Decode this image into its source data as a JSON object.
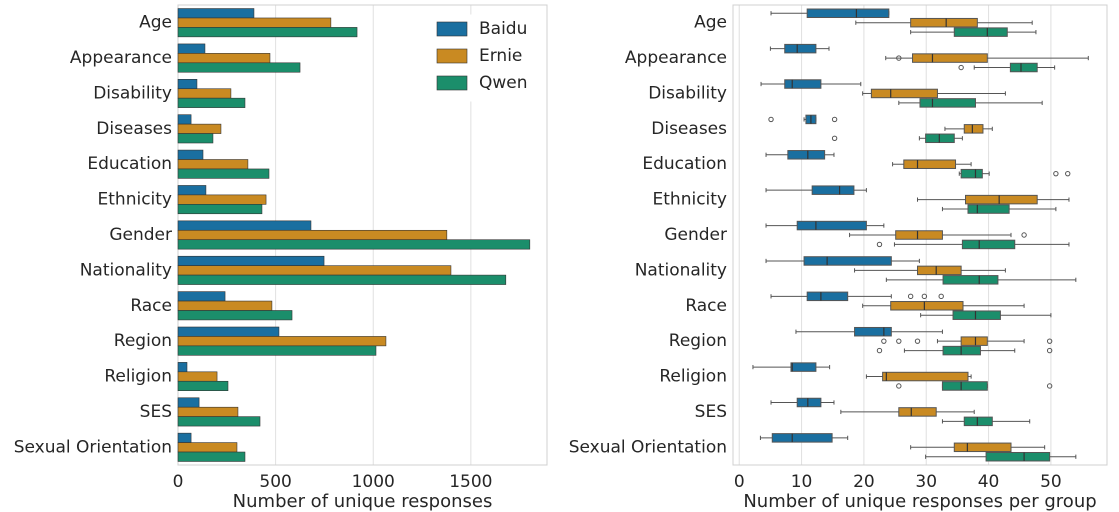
{
  "chart_data": [
    {
      "type": "bar",
      "orientation": "horizontal",
      "xlabel": "Number of unique responses",
      "categories": [
        "Age",
        "Appearance",
        "Disability",
        "Diseases",
        "Education",
        "Ethnicity",
        "Gender",
        "Nationality",
        "Race",
        "Region",
        "Religion",
        "SES",
        "Sexual Orientation"
      ],
      "series": [
        {
          "name": "Baidu",
          "color": "#1a6fa0",
          "values": [
            389,
            138,
            97,
            67,
            128,
            143,
            681,
            748,
            241,
            517,
            46,
            108,
            67
          ]
        },
        {
          "name": "Ernie",
          "color": "#c98a22",
          "values": [
            783,
            471,
            271,
            220,
            358,
            451,
            1377,
            1398,
            481,
            1065,
            200,
            307,
            302
          ]
        },
        {
          "name": "Qwen",
          "color": "#1b8e6b",
          "values": [
            917,
            625,
            343,
            179,
            466,
            430,
            1802,
            1679,
            584,
            1014,
            256,
            420,
            343
          ]
        }
      ],
      "xlim": [
        0,
        1890
      ],
      "xticks": [
        0,
        500,
        1000,
        1500
      ],
      "grid": true,
      "legend": "upper right"
    },
    {
      "type": "box",
      "orientation": "horizontal",
      "xlabel": "Number of unique responses per group",
      "categories": [
        "Age",
        "Appearance",
        "Disability",
        "Diseases",
        "Education",
        "Ethnicity",
        "Gender",
        "Nationality",
        "Race",
        "Region",
        "Religion",
        "SES",
        "Sexual Orientation"
      ],
      "series": [
        {
          "name": "Baidu",
          "color": "#1a6fa0",
          "values": [
            {
              "whislo": 5.1,
              "q1": 10.9,
              "med": 18.8,
              "q3": 24,
              "whishi": 24,
              "fliers": []
            },
            {
              "whislo": 5,
              "q1": 7.3,
              "med": 9.3,
              "q3": 12.3,
              "whishi": 14.4,
              "fliers": []
            },
            {
              "whislo": 3.5,
              "q1": 7.3,
              "med": 8.5,
              "q3": 13.1,
              "whishi": 19.5,
              "fliers": []
            },
            {
              "whislo": 10.4,
              "q1": 10.7,
              "med": 11.5,
              "q3": 12.3,
              "whishi": 12.3,
              "fliers": [
                5.1,
                15.3
              ]
            },
            {
              "whislo": 4.3,
              "q1": 7.8,
              "med": 11,
              "q3": 13.7,
              "whishi": 15.2,
              "fliers": []
            },
            {
              "whislo": 4.3,
              "q1": 11.7,
              "med": 16.1,
              "q3": 18.4,
              "whishi": 20.4,
              "fliers": []
            },
            {
              "whislo": 4.3,
              "q1": 9.3,
              "med": 12.3,
              "q3": 20.4,
              "whishi": 23.2,
              "fliers": []
            },
            {
              "whislo": 4.3,
              "q1": 10.4,
              "med": 14.1,
              "q3": 24.4,
              "whishi": 28.9,
              "fliers": []
            },
            {
              "whislo": 5.1,
              "q1": 10.9,
              "med": 13.1,
              "q3": 17.4,
              "whishi": 24.4,
              "fliers": [
                27.5,
                29.7,
                32.4
              ]
            },
            {
              "whislo": 9.1,
              "q1": 18.5,
              "med": 23.2,
              "q3": 24.4,
              "whishi": 32.6,
              "fliers": []
            },
            {
              "whislo": 2.2,
              "q1": 8.3,
              "med": 8.5,
              "q3": 12.3,
              "whishi": 14.5,
              "fliers": []
            },
            {
              "whislo": 5.1,
              "q1": 9.3,
              "med": 11,
              "q3": 13.1,
              "whishi": 15.2,
              "fliers": []
            },
            {
              "whislo": 3.4,
              "q1": 5.3,
              "med": 8.5,
              "q3": 14.9,
              "whishi": 17.4,
              "fliers": []
            }
          ]
        },
        {
          "name": "Ernie",
          "color": "#c98a22",
          "values": [
            {
              "whislo": 18.7,
              "q1": 27.5,
              "med": 33.2,
              "q3": 38.2,
              "whishi": 47,
              "fliers": []
            },
            {
              "whislo": 23.5,
              "q1": 27.8,
              "med": 31,
              "q3": 39.8,
              "whishi": 56,
              "fliers": [
                25.6
              ]
            },
            {
              "whislo": 19.8,
              "q1": 21.2,
              "med": 24.3,
              "q3": 31.8,
              "whishi": 42.7,
              "fliers": []
            },
            {
              "whislo": 33,
              "q1": 36.1,
              "med": 37.4,
              "q3": 39.1,
              "whishi": 40.6,
              "fliers": []
            },
            {
              "whislo": 24.6,
              "q1": 26.4,
              "med": 28.6,
              "q3": 34.7,
              "whishi": 37.2,
              "fliers": []
            },
            {
              "whislo": 28.6,
              "q1": 36.3,
              "med": 41.7,
              "q3": 47.8,
              "whishi": 52.9,
              "fliers": []
            },
            {
              "whislo": 17.7,
              "q1": 25.1,
              "med": 28.6,
              "q3": 32.6,
              "whishi": 43.6,
              "fliers": [
                45.7
              ]
            },
            {
              "whislo": 18.5,
              "q1": 28.6,
              "med": 31.6,
              "q3": 35.6,
              "whishi": 42.7,
              "fliers": []
            },
            {
              "whislo": 19.8,
              "q1": 24.3,
              "med": 29.7,
              "q3": 35.9,
              "whishi": 45.7,
              "fliers": []
            },
            {
              "whislo": 31.8,
              "q1": 35.6,
              "med": 37.9,
              "q3": 39.8,
              "whishi": 45.7,
              "fliers": [
                23.2,
                25.6,
                28.6,
                49.8
              ]
            },
            {
              "whislo": 20.4,
              "q1": 23,
              "med": 23.6,
              "q3": 36.7,
              "whishi": 37.2,
              "fliers": []
            },
            {
              "whislo": 16.3,
              "q1": 25.6,
              "med": 27.6,
              "q3": 31.6,
              "whishi": 37.7,
              "fliers": []
            },
            {
              "whislo": 27.5,
              "q1": 34.5,
              "med": 36.6,
              "q3": 43.6,
              "whishi": 49,
              "fliers": []
            }
          ]
        },
        {
          "name": "Qwen",
          "color": "#1b8e6b",
          "values": [
            {
              "whislo": 27.5,
              "q1": 34.5,
              "med": 39.8,
              "q3": 43,
              "whishi": 47.6,
              "fliers": []
            },
            {
              "whislo": 37.7,
              "q1": 43.5,
              "med": 45.2,
              "q3": 47.8,
              "whishi": 50.6,
              "fliers": [
                35.6
              ]
            },
            {
              "whislo": 25.6,
              "q1": 29,
              "med": 31,
              "q3": 37.9,
              "whishi": 48.6,
              "fliers": []
            },
            {
              "whislo": 28.9,
              "q1": 29.9,
              "med": 32.1,
              "q3": 34.5,
              "whishi": 35.8,
              "fliers": [
                15.3
              ]
            },
            {
              "whislo": 35.3,
              "q1": 35.6,
              "med": 37.9,
              "q3": 39,
              "whishi": 40.1,
              "fliers": [
                50.8,
                52.7
              ]
            },
            {
              "whislo": 32.6,
              "q1": 36.7,
              "med": 38.2,
              "q3": 43.3,
              "whishi": 50.8,
              "fliers": []
            },
            {
              "whislo": 24.9,
              "q1": 35.8,
              "med": 38.5,
              "q3": 44.2,
              "whishi": 52.9,
              "fliers": [
                22.5
              ]
            },
            {
              "whislo": 23.6,
              "q1": 32.7,
              "med": 38.5,
              "q3": 41.5,
              "whishi": 54,
              "fliers": []
            },
            {
              "whislo": 29.1,
              "q1": 34.3,
              "med": 37.9,
              "q3": 41.9,
              "whishi": 50,
              "fliers": []
            },
            {
              "whislo": 26.5,
              "q1": 32.7,
              "med": 35.6,
              "q3": 38.7,
              "whishi": 44.2,
              "fliers": [
                22.5,
                49.8
              ]
            },
            {
              "whislo": 32.6,
              "q1": 32.6,
              "med": 35.6,
              "q3": 39.8,
              "whishi": 39.8,
              "fliers": [
                25.6,
                49.8
              ]
            },
            {
              "whislo": 32.6,
              "q1": 36.1,
              "med": 38.2,
              "q3": 40.6,
              "whishi": 46.6,
              "fliers": []
            },
            {
              "whislo": 29.9,
              "q1": 39.6,
              "med": 45.7,
              "q3": 49.8,
              "whishi": 54,
              "fliers": []
            }
          ]
        }
      ],
      "xlim": [
        -1,
        59
      ],
      "xticks": [
        0,
        10,
        20,
        30,
        40,
        50
      ],
      "grid": true
    }
  ]
}
